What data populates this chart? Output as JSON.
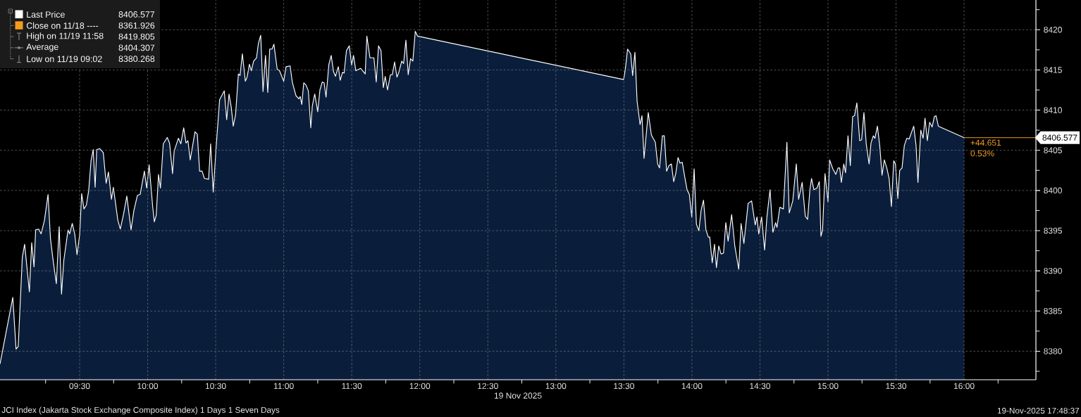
{
  "chart_data": {
    "type": "area",
    "xlabel": "19 Nov 2025",
    "x": [
      8.915,
      9.009,
      9.033,
      9.049,
      9.079,
      9.096,
      9.131,
      9.148,
      9.165,
      9.177,
      9.199,
      9.217,
      9.242,
      9.268,
      9.286,
      9.303,
      9.329,
      9.35,
      9.367,
      9.384,
      9.415,
      9.427,
      9.446,
      9.464,
      9.481,
      9.501,
      9.515,
      9.532,
      9.55,
      9.567,
      9.584,
      9.6,
      9.614,
      9.626,
      9.648,
      9.674,
      9.695,
      9.712,
      9.734,
      9.748,
      9.781,
      9.799,
      9.821,
      9.847,
      9.878,
      9.899,
      9.925,
      9.945,
      9.976,
      9.993,
      10.011,
      10.037,
      10.049,
      10.063,
      10.08,
      10.094,
      10.115,
      10.144,
      10.161,
      10.183,
      10.195,
      10.226,
      10.244,
      10.265,
      10.282,
      10.296,
      10.313,
      10.348,
      10.365,
      10.382,
      10.4,
      10.417,
      10.448,
      10.463,
      10.482,
      10.503,
      10.529,
      10.563,
      10.581,
      10.598,
      10.615,
      10.629,
      10.646,
      10.667,
      10.679,
      10.696,
      10.718,
      10.731,
      10.748,
      10.762,
      10.779,
      10.8,
      10.814,
      10.831,
      10.848,
      10.866,
      10.883,
      10.897,
      10.914,
      10.928,
      10.952,
      10.969,
      11.0,
      11.017,
      11.047,
      11.064,
      11.09,
      11.112,
      11.121,
      11.133,
      11.147,
      11.164,
      11.181,
      11.199,
      11.21,
      11.228,
      11.25,
      11.266,
      11.283,
      11.297,
      11.311,
      11.332,
      11.349,
      11.366,
      11.38,
      11.401,
      11.415,
      11.432,
      11.444,
      11.461,
      11.482,
      11.499,
      11.513,
      11.53,
      11.565,
      11.599,
      11.611,
      11.634,
      11.663,
      11.68,
      11.697,
      11.715,
      11.732,
      11.746,
      11.763,
      11.784,
      11.798,
      11.815,
      11.832,
      11.846,
      11.867,
      11.881,
      11.898,
      11.915,
      11.932,
      11.949,
      11.967,
      11.984,
      13.498,
      13.51,
      13.527,
      13.55,
      13.564,
      13.581,
      13.597,
      13.619,
      13.633,
      13.648,
      13.679,
      13.702,
      13.731,
      13.748,
      13.762,
      13.783,
      13.797,
      13.814,
      13.831,
      13.849,
      13.866,
      13.881,
      13.898,
      13.912,
      13.929,
      13.947,
      13.964,
      13.981,
      13.999,
      14.016,
      14.033,
      14.051,
      14.068,
      14.085,
      14.103,
      14.12,
      14.131,
      14.149,
      14.166,
      14.18,
      14.197,
      14.214,
      14.232,
      14.249,
      14.266,
      14.292,
      14.315,
      14.344,
      14.361,
      14.382,
      14.413,
      14.439,
      14.465,
      14.478,
      14.491,
      14.512,
      14.534,
      14.551,
      14.574,
      14.595,
      14.615,
      14.625,
      14.646,
      14.672,
      14.698,
      14.715,
      14.741,
      14.767,
      14.784,
      14.81,
      14.833,
      14.85,
      14.867,
      14.879,
      14.896,
      14.919,
      14.936,
      14.948,
      14.96,
      14.978,
      15.0,
      15.012,
      15.035,
      15.057,
      15.074,
      15.086,
      15.098,
      15.116,
      15.129,
      15.147,
      15.164,
      15.181,
      15.195,
      15.212,
      15.233,
      15.247,
      15.264,
      15.281,
      15.302,
      15.316,
      15.333,
      15.345,
      15.363,
      15.38,
      15.397,
      15.414,
      15.432,
      15.449,
      15.466,
      15.483,
      15.496,
      15.513,
      15.527,
      15.544,
      15.561,
      15.579,
      15.596,
      15.613,
      15.63,
      15.647,
      15.661,
      15.682,
      15.699,
      15.713,
      15.73,
      15.747,
      15.765,
      15.782,
      15.794,
      15.811,
      16.0
    ],
    "series": [
      {
        "name": "Last Price",
        "color": "#ffffff",
        "values": [
          8378.4,
          8386.7,
          8380.268,
          8380.6,
          8391.7,
          8393.3,
          8387.4,
          8393.5,
          8390.5,
          8395.1,
          8395.2,
          8394.6,
          8396.3,
          8399.5,
          8394,
          8391.6,
          8388.4,
          8395.5,
          8387.1,
          8391.3,
          8395.1,
          8394.6,
          8395.9,
          8394.6,
          8392,
          8394.6,
          8399.6,
          8397.7,
          8398.2,
          8400,
          8403.7,
          8405.1,
          8400.4,
          8405.1,
          8405.2,
          8404.7,
          8400.9,
          8402.3,
          8398.9,
          8400.4,
          8396.3,
          8395.2,
          8396.9,
          8399.3,
          8395.1,
          8397.5,
          8399.4,
          8399.5,
          8402.4,
          8400.3,
          8403.2,
          8398,
          8396.1,
          8396.9,
          8402,
          8400.3,
          8405.8,
          8406.6,
          8405.9,
          8402.1,
          8404.9,
          8406.5,
          8405.8,
          8407.8,
          8405.9,
          8406.2,
          8403.8,
          8407.3,
          8407,
          8402.4,
          8402.4,
          8401.5,
          8401.4,
          8405.8,
          8399.8,
          8405.3,
          8411.3,
          8412.4,
          8408.8,
          8412,
          8410.3,
          8408,
          8409.4,
          8414.5,
          8414.3,
          8417,
          8413.6,
          8414.1,
          8415.7,
          8414.9,
          8416.1,
          8416.5,
          8418.3,
          8419.3,
          8412.3,
          8416.8,
          8412.2,
          8417.6,
          8417.6,
          8418.2,
          8415.1,
          8414.9,
          8413.6,
          8415.4,
          8415.5,
          8413.4,
          8411.8,
          8411.4,
          8411.7,
          8410.7,
          8413.4,
          8413.1,
          8412.4,
          8407.8,
          8410.5,
          8412,
          8409.8,
          8412.5,
          8413.5,
          8413.4,
          8411.6,
          8415.7,
          8416.8,
          8414.8,
          8414.2,
          8415.4,
          8413.7,
          8414.7,
          8414.6,
          8417.4,
          8418,
          8415.6,
          8416.8,
          8414.9,
          8415.2,
          8414.5,
          8419.2,
          8416.5,
          8416.5,
          8413.5,
          8418,
          8417.4,
          8412.8,
          8414.2,
          8412.5,
          8414.4,
          8414.4,
          8416,
          8414.1,
          8414.7,
          8416.1,
          8415.8,
          8418.7,
          8414.4,
          8416.4,
          8416.1,
          8419.805,
          8419.2,
          8413.8,
          8415,
          8417.6,
          8417,
          8414.3,
          8417.2,
          8411.1,
          8408.2,
          8409.3,
          8404,
          8409.7,
          8406.9,
          8406,
          8403.3,
          8402.8,
          8406.8,
          8406.8,
          8402.4,
          8403.1,
          8403.3,
          8401.1,
          8402.1,
          8404.1,
          8403.4,
          8403.5,
          8401.7,
          8400.1,
          8399.5,
          8396.7,
          8402.7,
          8395.8,
          8395,
          8397.6,
          8398.8,
          8395.1,
          8394.2,
          8394.2,
          8391,
          8393.3,
          8390.4,
          8393.1,
          8392.1,
          8392.2,
          8396,
          8393.7,
          8397,
          8393.1,
          8390.2,
          8395.9,
          8393.4,
          8398.4,
          8398.7,
          8395.7,
          8396.7,
          8394.6,
          8396.7,
          8392.6,
          8396.7,
          8400.1,
          8394.8,
          8396,
          8395.4,
          8397.9,
          8397.7,
          8406,
          8397.2,
          8398.7,
          8403.3,
          8398.9,
          8401,
          8396.8,
          8396.4,
          8400.1,
          8401.5,
          8400.1,
          8400.3,
          8401.1,
          8394.3,
          8395.1,
          8402.1,
          8398.6,
          8403.8,
          8402.7,
          8402,
          8402.8,
          8402.8,
          8401,
          8403.3,
          8402.2,
          8406.8,
          8403.1,
          8409.2,
          8409.3,
          8410.9,
          8406.2,
          8406.3,
          8409.7,
          8405.8,
          8403.3,
          8405.9,
          8406.8,
          8406.5,
          8408,
          8405.6,
          8401.9,
          8403.8,
          8402.8,
          8401.5,
          8398,
          8403.7,
          8403.3,
          8399,
          8402.5,
          8402.8,
          8405.6,
          8406.5,
          8406.4,
          8407.2,
          8408,
          8405.6,
          8401,
          8407.5,
          8406.5,
          8409,
          8406.2,
          8408.5,
          8407.9,
          8409.2,
          8409.3,
          8408,
          8406.577
        ]
      }
    ],
    "xlim": [
      8.915,
      16.528
    ],
    "ylim": [
      8376.45,
      8423.7
    ],
    "xticks": [
      {
        "value": 9.25,
        "label": null
      },
      {
        "value": 9.5,
        "label": "09:30"
      },
      {
        "value": 9.75,
        "label": null
      },
      {
        "value": 10,
        "label": "10:00"
      },
      {
        "value": 10.25,
        "label": null
      },
      {
        "value": 10.5,
        "label": "10:30"
      },
      {
        "value": 10.75,
        "label": null
      },
      {
        "value": 11,
        "label": "11:00"
      },
      {
        "value": 11.25,
        "label": null
      },
      {
        "value": 11.5,
        "label": "11:30"
      },
      {
        "value": 11.75,
        "label": null
      },
      {
        "value": 12,
        "label": "12:00"
      },
      {
        "value": 12.25,
        "label": null
      },
      {
        "value": 12.5,
        "label": "12:30"
      },
      {
        "value": 12.75,
        "label": null
      },
      {
        "value": 13,
        "label": "13:00"
      },
      {
        "value": 13.25,
        "label": null
      },
      {
        "value": 13.5,
        "label": "13:30"
      },
      {
        "value": 13.75,
        "label": null
      },
      {
        "value": 14,
        "label": "14:00"
      },
      {
        "value": 14.25,
        "label": null
      },
      {
        "value": 14.5,
        "label": "14:30"
      },
      {
        "value": 14.75,
        "label": null
      },
      {
        "value": 15,
        "label": "15:00"
      },
      {
        "value": 15.25,
        "label": null
      },
      {
        "value": 15.5,
        "label": "15:30"
      },
      {
        "value": 15.75,
        "label": null
      },
      {
        "value": 16,
        "label": "16:00"
      },
      {
        "value": 16.25,
        "label": null
      }
    ],
    "yticks": [
      {
        "value": 8377.5,
        "label": null
      },
      8380,
      {
        "value": 8382.5,
        "label": null
      },
      8385,
      {
        "value": 8387.5,
        "label": null
      },
      8390,
      {
        "value": 8392.5,
        "label": null
      },
      8395,
      {
        "value": 8397.5,
        "label": null
      },
      8400,
      {
        "value": 8402.5,
        "label": null
      },
      8405,
      {
        "value": 8407.5,
        "label": null
      },
      8410,
      {
        "value": 8412.5,
        "label": null
      },
      8415,
      {
        "value": 8417.5,
        "label": null
      },
      8420,
      {
        "value": 8422.5,
        "label": null
      }
    ],
    "grid": true,
    "legend": "top left",
    "ref_lines": [
      {
        "axis": "y",
        "value": 8406.577,
        "label": "8406.577",
        "color": "#f39c1f"
      }
    ],
    "annotations": [
      "8406.577",
      "Close on 11/18 ----",
      "8361.926",
      "High on 11/19 11:58",
      "8419.805",
      "Average",
      "8404.307",
      "Low on 11/19 09:02",
      "8380.268",
      "+44.651",
      "0.53%",
      "JCI Index (Jakarta Stock Exchange Composite Index) 1 Days 1 Seven Days",
      "19-Nov-2025 17:48:37"
    ]
  }
}
